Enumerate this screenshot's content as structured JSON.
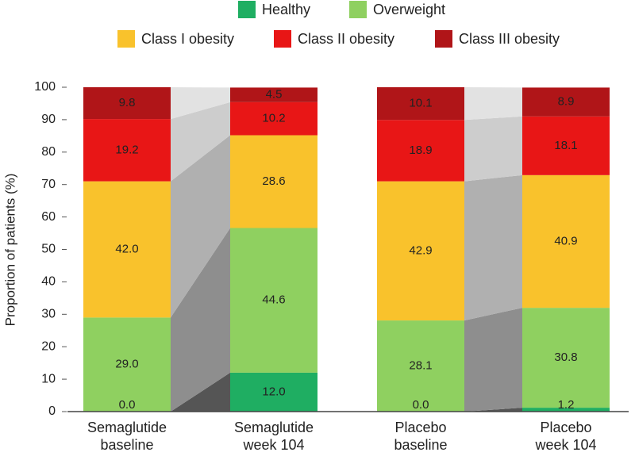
{
  "chart_data": {
    "type": "stacked_bar",
    "y_label": "Proportion of patients (%)",
    "categories": [
      "Semaglutide baseline",
      "Semaglutide week 104",
      "Placebo baseline",
      "Placebo week 104"
    ],
    "series": [
      {
        "name": "Healthy",
        "color": "#1fae62",
        "values": [
          0.0,
          12.0,
          0.0,
          1.2
        ],
        "value_labels": [
          "0.0",
          "12.0",
          "0.0",
          "1.2"
        ]
      },
      {
        "name": "Overweight",
        "color": "#8fd060",
        "values": [
          29.0,
          44.6,
          28.1,
          30.8
        ],
        "value_labels": [
          "29.0",
          "44.6",
          "28.1",
          "30.8"
        ]
      },
      {
        "name": "Class I obesity",
        "color": "#f9c22c",
        "values": [
          42.0,
          28.6,
          42.9,
          40.9
        ],
        "value_labels": [
          "42.0",
          "28.6",
          "42.9",
          "40.9"
        ]
      },
      {
        "name": "Class II obesity",
        "color": "#e81616",
        "values": [
          19.2,
          10.2,
          18.9,
          18.1
        ],
        "value_labels": [
          "19.2",
          "10.2",
          "18.9",
          "18.1"
        ]
      },
      {
        "name": "Class III obesity",
        "color": "#b01518",
        "values": [
          9.8,
          4.5,
          10.1,
          8.9
        ],
        "value_labels": [
          "9.8",
          "4.5",
          "10.1",
          "8.9"
        ]
      }
    ],
    "ylim": [
      0,
      100
    ],
    "yticks": [
      0,
      10,
      20,
      30,
      40,
      50,
      60,
      70,
      80,
      90,
      100
    ]
  }
}
